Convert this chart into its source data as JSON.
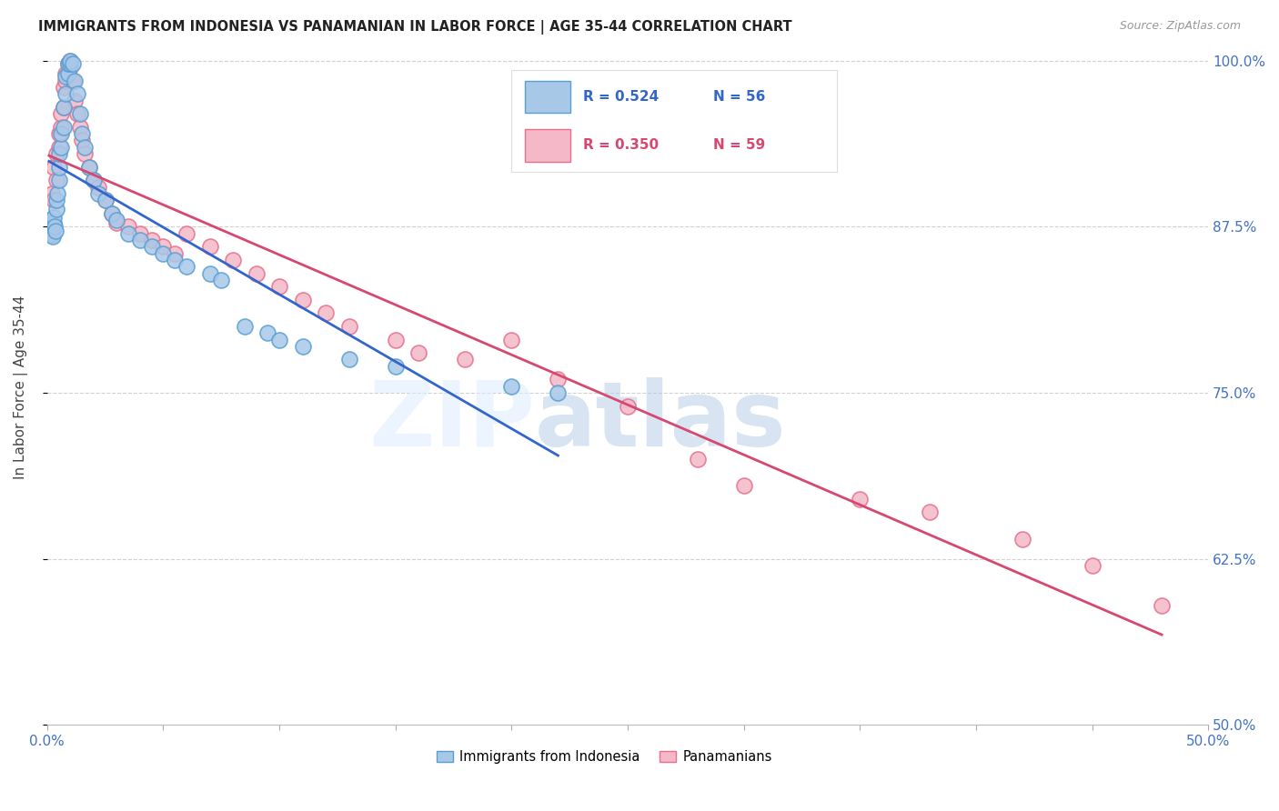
{
  "title": "IMMIGRANTS FROM INDONESIA VS PANAMANIAN IN LABOR FORCE | AGE 35-44 CORRELATION CHART",
  "source": "Source: ZipAtlas.com",
  "ylabel": "In Labor Force | Age 35-44",
  "xlim": [
    0.0,
    0.5
  ],
  "ylim": [
    0.5,
    1.008
  ],
  "yticks": [
    0.5,
    0.625,
    0.75,
    0.875,
    1.0
  ],
  "yticklabels": [
    "50.0%",
    "62.5%",
    "75.0%",
    "87.5%",
    "100.0%"
  ],
  "series1_label": "Immigrants from Indonesia",
  "series1_R": "R = 0.524",
  "series1_N": "N = 56",
  "series1_color": "#a8c8e8",
  "series1_edge_color": "#5a9fd4",
  "series1_line_color": "#3366cc",
  "series2_label": "Panamanians",
  "series2_R": "R = 0.350",
  "series2_N": "N = 59",
  "series2_color": "#f4b8c8",
  "series2_edge_color": "#e8708a",
  "series2_line_color": "#d64870",
  "grid_color": "#cccccc",
  "indonesia_x": [
    0.0008,
    0.001,
    0.0012,
    0.0015,
    0.0018,
    0.002,
    0.0022,
    0.0025,
    0.003,
    0.003,
    0.0032,
    0.0035,
    0.004,
    0.004,
    0.0045,
    0.005,
    0.005,
    0.005,
    0.006,
    0.006,
    0.007,
    0.007,
    0.008,
    0.008,
    0.009,
    0.009,
    0.01,
    0.01,
    0.011,
    0.012,
    0.013,
    0.014,
    0.015,
    0.016,
    0.018,
    0.02,
    0.022,
    0.025,
    0.028,
    0.03,
    0.035,
    0.04,
    0.045,
    0.05,
    0.055,
    0.06,
    0.07,
    0.075,
    0.085,
    0.095,
    0.1,
    0.11,
    0.13,
    0.15,
    0.2,
    0.22
  ],
  "indonesia_y": [
    0.878,
    0.88,
    0.876,
    0.874,
    0.87,
    0.872,
    0.869,
    0.868,
    0.878,
    0.882,
    0.875,
    0.872,
    0.888,
    0.895,
    0.9,
    0.91,
    0.92,
    0.93,
    0.935,
    0.945,
    0.95,
    0.965,
    0.975,
    0.988,
    0.99,
    0.998,
    0.998,
    1.0,
    0.998,
    0.985,
    0.975,
    0.96,
    0.945,
    0.935,
    0.92,
    0.91,
    0.9,
    0.895,
    0.885,
    0.88,
    0.87,
    0.865,
    0.86,
    0.855,
    0.85,
    0.845,
    0.84,
    0.835,
    0.8,
    0.795,
    0.79,
    0.785,
    0.775,
    0.77,
    0.755,
    0.75
  ],
  "panama_x": [
    0.0008,
    0.001,
    0.0012,
    0.0015,
    0.002,
    0.002,
    0.003,
    0.003,
    0.004,
    0.004,
    0.005,
    0.005,
    0.006,
    0.006,
    0.007,
    0.007,
    0.008,
    0.008,
    0.009,
    0.01,
    0.01,
    0.011,
    0.012,
    0.013,
    0.014,
    0.015,
    0.016,
    0.018,
    0.02,
    0.022,
    0.025,
    0.028,
    0.03,
    0.035,
    0.04,
    0.045,
    0.05,
    0.055,
    0.06,
    0.07,
    0.08,
    0.09,
    0.1,
    0.11,
    0.12,
    0.13,
    0.15,
    0.16,
    0.18,
    0.2,
    0.22,
    0.25,
    0.28,
    0.3,
    0.35,
    0.38,
    0.42,
    0.45,
    0.48
  ],
  "panama_y": [
    0.876,
    0.878,
    0.875,
    0.872,
    0.87,
    0.9,
    0.895,
    0.92,
    0.91,
    0.93,
    0.935,
    0.945,
    0.95,
    0.96,
    0.965,
    0.98,
    0.985,
    0.99,
    0.998,
    1.0,
    0.995,
    0.985,
    0.97,
    0.96,
    0.95,
    0.94,
    0.93,
    0.92,
    0.91,
    0.905,
    0.895,
    0.885,
    0.878,
    0.875,
    0.87,
    0.865,
    0.86,
    0.855,
    0.87,
    0.86,
    0.85,
    0.84,
    0.83,
    0.82,
    0.81,
    0.8,
    0.79,
    0.78,
    0.775,
    0.79,
    0.76,
    0.74,
    0.7,
    0.68,
    0.67,
    0.66,
    0.64,
    0.62,
    0.59
  ]
}
